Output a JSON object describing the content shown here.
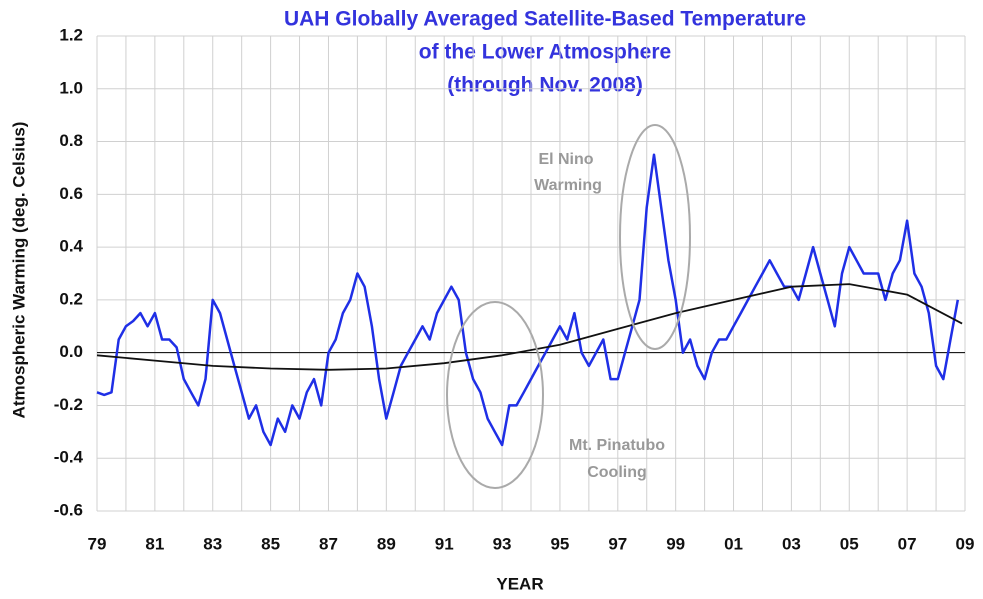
{
  "chart_data": {
    "type": "line",
    "title": [
      "UAH Globally Averaged Satellite-Based Temperature",
      "of the Lower Atmosphere",
      "(through Nov. 2008)"
    ],
    "xlabel": "YEAR",
    "ylabel": "Atmospheric Warming (deg. Celsius)",
    "annotations": [
      {
        "text": [
          "El Nino",
          "Warming"
        ]
      },
      {
        "text": [
          "Mt. Pinatubo",
          "Cooling"
        ]
      }
    ],
    "xlim": [
      1979,
      2009
    ],
    "ylim": [
      -0.6,
      1.2
    ],
    "xticks": [
      {
        "value": 1979,
        "label": "79"
      },
      {
        "value": 1981,
        "label": "81"
      },
      {
        "value": 1983,
        "label": "83"
      },
      {
        "value": 1985,
        "label": "85"
      },
      {
        "value": 1987,
        "label": "87"
      },
      {
        "value": 1989,
        "label": "89"
      },
      {
        "value": 1991,
        "label": "91"
      },
      {
        "value": 1993,
        "label": "93"
      },
      {
        "value": 1995,
        "label": "95"
      },
      {
        "value": 1997,
        "label": "97"
      },
      {
        "value": 1999,
        "label": "99"
      },
      {
        "value": 2001,
        "label": "01"
      },
      {
        "value": 2003,
        "label": "03"
      },
      {
        "value": 2005,
        "label": "05"
      },
      {
        "value": 2007,
        "label": "07"
      },
      {
        "value": 2009,
        "label": "09"
      }
    ],
    "x_minor_ticks": [
      1980,
      1982,
      1984,
      1986,
      1988,
      1990,
      1992,
      1994,
      1996,
      1998,
      2000,
      2002,
      2004,
      2006,
      2008
    ],
    "yticks": [
      -0.6,
      -0.4,
      -0.2,
      {
        "value": 0,
        "label": "0.0"
      },
      0.2,
      0.4,
      0.6,
      0.8,
      {
        "value": 1,
        "label": "1.0"
      },
      1.2
    ],
    "grid": true,
    "series": [
      {
        "color": "#1f2fe6",
        "x": [
          1979,
          1979.25,
          1979.5,
          1979.75,
          1980,
          1980.25,
          1980.5,
          1980.75,
          1981,
          1981.25,
          1981.5,
          1981.75,
          1982,
          1982.25,
          1982.5,
          1982.75,
          1983,
          1983.25,
          1983.5,
          1983.75,
          1984,
          1984.25,
          1984.5,
          1984.75,
          1985,
          1985.25,
          1985.5,
          1985.75,
          1986,
          1986.25,
          1986.5,
          1986.75,
          1987,
          1987.25,
          1987.5,
          1987.75,
          1988,
          1988.25,
          1988.5,
          1988.75,
          1989,
          1989.25,
          1989.5,
          1989.75,
          1990,
          1990.25,
          1990.5,
          1990.75,
          1991,
          1991.25,
          1991.5,
          1991.75,
          1992,
          1992.25,
          1992.5,
          1992.75,
          1993,
          1993.25,
          1993.5,
          1993.75,
          1994,
          1994.25,
          1994.5,
          1994.75,
          1995,
          1995.25,
          1995.5,
          1995.75,
          1996,
          1996.25,
          1996.5,
          1996.75,
          1997,
          1997.25,
          1997.5,
          1997.75,
          1998,
          1998.25,
          1998.5,
          1998.75,
          1999,
          1999.25,
          1999.5,
          1999.75,
          2000,
          2000.25,
          2000.5,
          2000.75,
          2001,
          2001.25,
          2001.5,
          2001.75,
          2002,
          2002.25,
          2002.5,
          2002.75,
          2003,
          2003.25,
          2003.5,
          2003.75,
          2004,
          2004.25,
          2004.5,
          2004.75,
          2005,
          2005.25,
          2005.5,
          2005.75,
          2006,
          2006.25,
          2006.5,
          2006.75,
          2007,
          2007.25,
          2007.5,
          2007.75,
          2008,
          2008.25,
          2008.5,
          2008.75
        ],
        "values": [
          -0.15,
          -0.16,
          -0.15,
          0.05,
          0.1,
          0.12,
          0.15,
          0.1,
          0.15,
          0.05,
          0.05,
          0.02,
          -0.1,
          -0.15,
          -0.2,
          -0.1,
          0.2,
          0.15,
          0.05,
          -0.05,
          -0.15,
          -0.25,
          -0.2,
          -0.3,
          -0.35,
          -0.25,
          -0.3,
          -0.2,
          -0.25,
          -0.15,
          -0.1,
          -0.2,
          0.0,
          0.05,
          0.15,
          0.2,
          0.3,
          0.25,
          0.1,
          -0.1,
          -0.25,
          -0.15,
          -0.05,
          0.0,
          0.05,
          0.1,
          0.05,
          0.15,
          0.2,
          0.25,
          0.2,
          0.0,
          -0.1,
          -0.15,
          -0.25,
          -0.3,
          -0.35,
          -0.2,
          -0.2,
          -0.15,
          -0.1,
          -0.05,
          0.0,
          0.05,
          0.1,
          0.05,
          0.15,
          0.0,
          -0.05,
          0.0,
          0.05,
          -0.1,
          -0.1,
          0.0,
          0.1,
          0.2,
          0.55,
          0.75,
          0.55,
          0.35,
          0.2,
          0.0,
          0.05,
          -0.05,
          -0.1,
          0.0,
          0.05,
          0.05,
          0.1,
          0.15,
          0.2,
          0.25,
          0.3,
          0.35,
          0.3,
          0.25,
          0.25,
          0.2,
          0.3,
          0.4,
          0.3,
          0.2,
          0.1,
          0.3,
          0.4,
          0.35,
          0.3,
          0.3,
          0.3,
          0.2,
          0.3,
          0.35,
          0.5,
          0.3,
          0.25,
          0.15,
          -0.05,
          -0.1,
          0.05,
          0.2
        ]
      },
      {
        "color": "#111111",
        "x": [
          1979,
          1981,
          1983,
          1985,
          1987,
          1989,
          1991,
          1993,
          1995,
          1997,
          1999,
          2001,
          2003,
          2005,
          2007,
          2008.9
        ],
        "values": [
          -0.01,
          -0.03,
          -0.05,
          -0.06,
          -0.065,
          -0.06,
          -0.04,
          -0.01,
          0.03,
          0.09,
          0.15,
          0.2,
          0.25,
          0.26,
          0.22,
          0.11
        ]
      }
    ]
  }
}
